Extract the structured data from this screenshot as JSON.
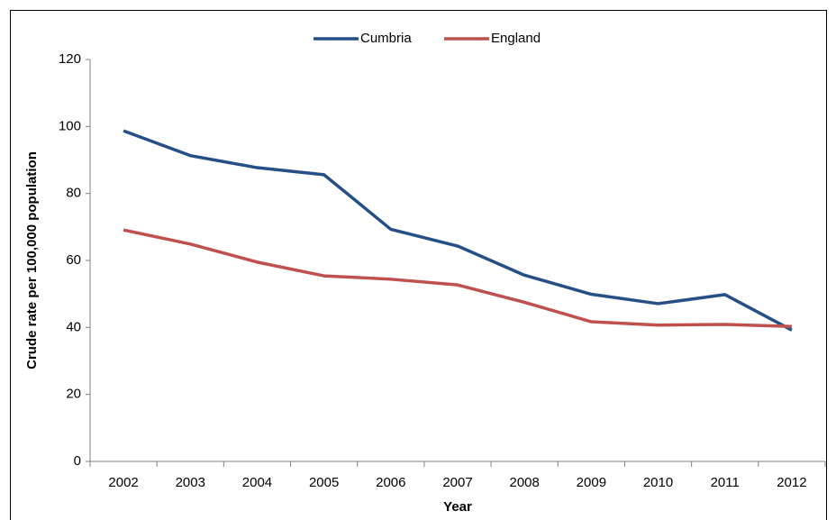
{
  "chart_data": {
    "type": "line",
    "y_label": "Crude rate per 100,000 population",
    "x_label": "Year",
    "categories": [
      "2002",
      "2003",
      "2004",
      "2005",
      "2006",
      "2007",
      "2008",
      "2009",
      "2010",
      "2011",
      "2012"
    ],
    "series": [
      {
        "name": "Cumbria",
        "color": "#254f86",
        "values": [
          98.7,
          91.3,
          87.7,
          85.6,
          69.3,
          64.3,
          55.6,
          49.9,
          47.1,
          49.8,
          39.2
        ]
      },
      {
        "name": "England",
        "color": "#c0504d",
        "values": [
          69.1,
          64.9,
          59.5,
          55.4,
          54.4,
          52.7,
          47.5,
          41.7,
          40.7,
          40.9,
          40.3
        ]
      }
    ],
    "ylim": [
      0,
      120
    ],
    "yticks": [
      0,
      20,
      40,
      60,
      80,
      100,
      120
    ],
    "legend": "top",
    "grid": false
  }
}
